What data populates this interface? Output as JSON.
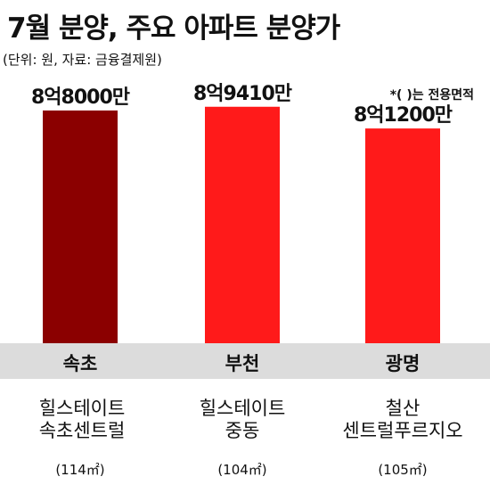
{
  "header": {
    "title": "7월 분양, 주요 아파트 분양가",
    "subtitle": "(단위: 원, 자료: 금융결제원)",
    "footnote": "*(  )는 전용면적"
  },
  "chart_data": {
    "type": "bar",
    "title": "7월 분양, 주요 아파트 분양가",
    "unit": "원",
    "categories": [
      "속초",
      "부천",
      "광명"
    ],
    "values": [
      880000000,
      894100000,
      812000000
    ],
    "value_labels": [
      "8억8000만",
      "8억9410만",
      "8억1200만"
    ],
    "colors": [
      "#8b0000",
      "#ff1a1a",
      "#ff1a1a"
    ],
    "ylim": [
      0,
      900000000
    ],
    "grid": false,
    "legend": "none"
  },
  "sites": [
    {
      "region": "속초",
      "name_line1": "힐스테이트",
      "name_line2": "속초센트럴",
      "area": "(114㎡)"
    },
    {
      "region": "부천",
      "name_line1": "힐스테이트",
      "name_line2": "중동",
      "area": "(104㎡)"
    },
    {
      "region": "광명",
      "name_line1": "철산",
      "name_line2": "센트럴푸르지오",
      "area": "(105㎡)"
    }
  ],
  "colors": {
    "band": "#dcdcdc",
    "divider": "#bbbbbb",
    "text": "#111111"
  }
}
